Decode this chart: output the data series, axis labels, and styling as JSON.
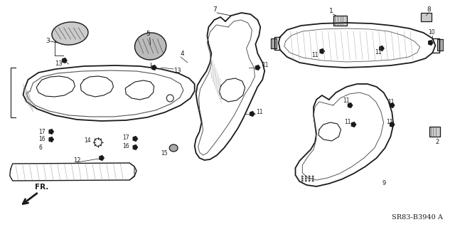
{
  "bg_color": "#ffffff",
  "fig_width": 6.4,
  "fig_height": 3.19,
  "dpi": 100,
  "diagram_code": "SR83-B3940 A"
}
